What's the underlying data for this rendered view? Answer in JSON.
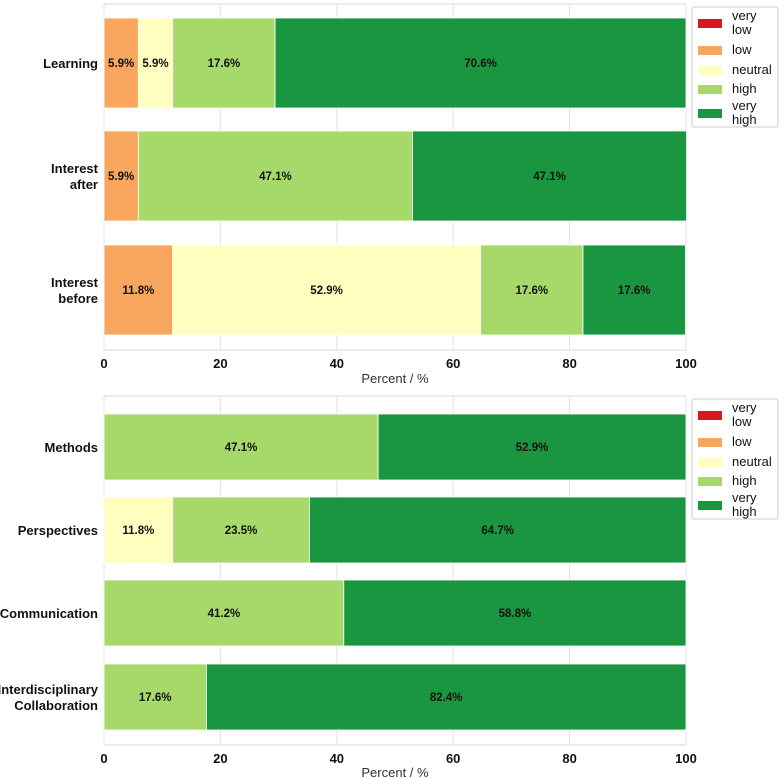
{
  "legend": {
    "keys": [
      "very_low",
      "low",
      "neutral",
      "high",
      "very_high"
    ],
    "labels": [
      "very low",
      "low",
      "neutral",
      "high",
      "very high"
    ],
    "colors": [
      "#d7191c",
      "#f9a65f",
      "#ffffc0",
      "#a6d96a",
      "#1a9641"
    ]
  },
  "chart_data": [
    {
      "type": "bar",
      "orientation": "horizontal",
      "stacked": true,
      "categories": [
        "Learning",
        "Interest after",
        "Interest before"
      ],
      "xlabel": "Percent / %",
      "xlim": [
        0,
        100
      ],
      "xticks": [
        0,
        20,
        40,
        60,
        80,
        100
      ],
      "grid": true,
      "legend_position": "right",
      "series": [
        {
          "name": "very low",
          "values": [
            0,
            0,
            0
          ]
        },
        {
          "name": "low",
          "values": [
            5.9,
            5.9,
            11.8
          ]
        },
        {
          "name": "neutral",
          "values": [
            5.9,
            0,
            52.9
          ]
        },
        {
          "name": "high",
          "values": [
            17.6,
            47.1,
            17.6
          ]
        },
        {
          "name": "very high",
          "values": [
            70.6,
            47.1,
            17.6
          ]
        }
      ]
    },
    {
      "type": "bar",
      "orientation": "horizontal",
      "stacked": true,
      "categories": [
        "Methods",
        "Perspectives",
        "Communication",
        "Interdisciplinary Collaboration"
      ],
      "xlabel": "Percent / %",
      "xlim": [
        0,
        100
      ],
      "xticks": [
        0,
        20,
        40,
        60,
        80,
        100
      ],
      "grid": true,
      "legend_position": "right",
      "series": [
        {
          "name": "very low",
          "values": [
            0,
            0,
            0,
            0
          ]
        },
        {
          "name": "low",
          "values": [
            0,
            0,
            0,
            0
          ]
        },
        {
          "name": "neutral",
          "values": [
            0,
            11.8,
            0,
            0
          ]
        },
        {
          "name": "high",
          "values": [
            47.1,
            23.5,
            41.2,
            17.6
          ]
        },
        {
          "name": "very high",
          "values": [
            52.9,
            64.7,
            58.8,
            82.4
          ]
        }
      ]
    }
  ]
}
